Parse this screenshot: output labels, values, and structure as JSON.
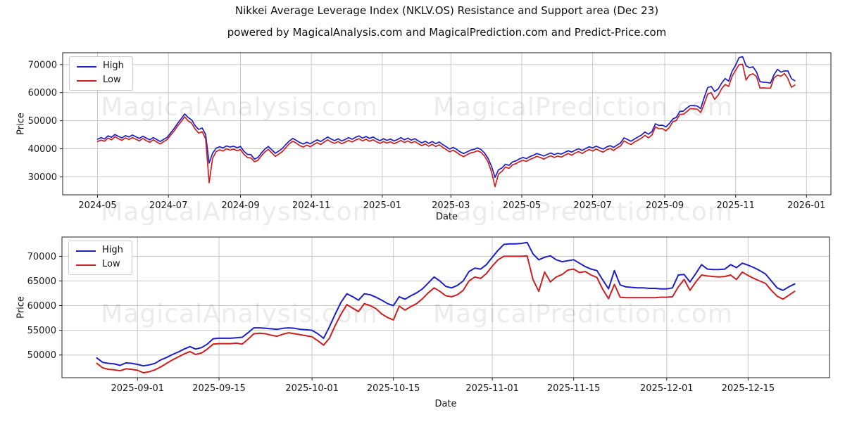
{
  "figure": {
    "title": "Nikkei Average Leverage Index (NKLV.OS) Resistance and Support area (Dec 23)",
    "subtitle": "powered by MagicalAnalysis.com and MagicalPrediction.com and Predict-Price.com"
  },
  "watermarks": {
    "left": "MagicalAnalysis.com",
    "right": "MagicalPrediction.com"
  },
  "chart_data": [
    {
      "type": "line",
      "ylabel": "Price",
      "xlabel": "Date",
      "x_start": "2024-05-01",
      "x_end": "2025-12-22",
      "x_step_days": 3,
      "xlim_days": [
        -30,
        631
      ],
      "ylim": [
        23600,
        74200
      ],
      "grid": true,
      "grid_color": "#c8c8c8",
      "legend_position": "upper-left",
      "yticks": [
        30000,
        40000,
        50000,
        60000,
        70000
      ],
      "xticks": [
        {
          "label": "2024-05",
          "day": 0
        },
        {
          "label": "2024-07",
          "day": 61
        },
        {
          "label": "2024-09",
          "day": 123
        },
        {
          "label": "2024-11",
          "day": 184
        },
        {
          "label": "2025-01",
          "day": 245
        },
        {
          "label": "2025-03",
          "day": 304
        },
        {
          "label": "2025-05",
          "day": 365
        },
        {
          "label": "2025-07",
          "day": 426
        },
        {
          "label": "2025-09",
          "day": 488
        },
        {
          "label": "2025-11",
          "day": 549
        },
        {
          "label": "2026-01",
          "day": 610
        }
      ],
      "series": [
        {
          "name": "High",
          "color": "#1e1ec8",
          "values": [
            43400,
            44000,
            43500,
            44600,
            44100,
            45100,
            44400,
            43900,
            44700,
            44200,
            44900,
            44300,
            43700,
            44500,
            43800,
            43200,
            44000,
            43300,
            42600,
            43400,
            44100,
            45700,
            47300,
            49100,
            50700,
            52400,
            51100,
            50300,
            48200,
            46900,
            47400,
            45100,
            34900,
            38400,
            40200,
            40700,
            40300,
            41000,
            40600,
            40900,
            40400,
            40800,
            39100,
            38000,
            37900,
            36300,
            36900,
            38500,
            39900,
            40800,
            39600,
            38400,
            39200,
            40100,
            41500,
            42800,
            43700,
            43000,
            42200,
            41700,
            42300,
            41800,
            42500,
            43200,
            42600,
            43400,
            44200,
            43500,
            42900,
            43600,
            42800,
            43300,
            44000,
            43400,
            44100,
            44600,
            43800,
            44400,
            43700,
            44200,
            43500,
            42900,
            43600,
            43000,
            43500,
            42800,
            43300,
            44000,
            43200,
            43800,
            43100,
            43600,
            42800,
            42100,
            42700,
            41900,
            42600,
            41800,
            42400,
            41500,
            40700,
            39900,
            40500,
            39800,
            38900,
            38300,
            38900,
            39500,
            39800,
            40300,
            39700,
            38500,
            36600,
            33800,
            29800,
            32500,
            33200,
            34500,
            34100,
            35300,
            35700,
            36400,
            36900,
            36500,
            37200,
            37700,
            38300,
            37900,
            37400,
            38000,
            38500,
            37900,
            38400,
            38100,
            38700,
            39300,
            38800,
            39500,
            40000,
            39400,
            40100,
            40700,
            40300,
            40900,
            40400,
            39900,
            40600,
            41100,
            40500,
            41300,
            42100,
            43900,
            43300,
            42700,
            43500,
            44200,
            44900,
            46000,
            45200,
            46100,
            48900,
            48300,
            48400,
            47800,
            49000,
            50600,
            51200,
            53300,
            53400,
            54500,
            55400,
            55400,
            55200,
            54300,
            58300,
            61800,
            62200,
            60400,
            61300,
            63400,
            65000,
            64100,
            67600,
            69800,
            72500,
            72800,
            69600,
            68900,
            69200,
            67300,
            63900,
            63700,
            63600,
            63400,
            66300,
            68300,
            67300,
            67700,
            67700,
            65000,
            64200
          ]
        },
        {
          "name": "Low",
          "color": "#cd1f1f",
          "values": [
            42600,
            43100,
            42700,
            43800,
            43200,
            44300,
            43600,
            43000,
            43900,
            43300,
            44000,
            43400,
            42800,
            43700,
            42900,
            42300,
            43200,
            42400,
            41700,
            42600,
            43300,
            44900,
            46400,
            48200,
            49700,
            51400,
            49900,
            49100,
            47000,
            45600,
            46100,
            43600,
            27900,
            36600,
            39000,
            39600,
            39200,
            40000,
            39500,
            39900,
            39300,
            39700,
            38000,
            36900,
            36700,
            35400,
            35900,
            37500,
            38900,
            39800,
            38500,
            37300,
            38100,
            39000,
            40400,
            41800,
            42700,
            42000,
            41100,
            40600,
            41300,
            40700,
            41500,
            42200,
            41500,
            42400,
            43200,
            42400,
            41900,
            42600,
            41800,
            42300,
            43000,
            42400,
            43100,
            43600,
            42800,
            43400,
            42700,
            43200,
            42500,
            41900,
            42600,
            42000,
            42500,
            41800,
            42300,
            43000,
            42200,
            42800,
            42100,
            42600,
            41800,
            41100,
            41700,
            40900,
            41600,
            40800,
            41400,
            40500,
            39700,
            38900,
            39500,
            38700,
            37800,
            37200,
            37900,
            38500,
            38800,
            39300,
            38700,
            37400,
            35300,
            31800,
            26500,
            31000,
            32000,
            33500,
            33000,
            34300,
            34700,
            35400,
            35900,
            35500,
            36200,
            36700,
            37300,
            36900,
            36300,
            37000,
            37500,
            36900,
            37400,
            37000,
            37700,
            38300,
            37700,
            38500,
            39000,
            38300,
            39100,
            39700,
            39200,
            39900,
            39300,
            38800,
            39600,
            40100,
            39400,
            40300,
            41000,
            42800,
            42100,
            41500,
            42400,
            43100,
            43800,
            44800,
            43900,
            44900,
            47800,
            47100,
            47200,
            46400,
            47600,
            49600,
            50100,
            52200,
            52300,
            53200,
            54300,
            54200,
            54100,
            52900,
            56000,
            59500,
            60000,
            57600,
            59100,
            61400,
            62900,
            62200,
            65800,
            68000,
            70000,
            70100,
            64500,
            66300,
            66700,
            65700,
            61600,
            61700,
            61600,
            61600,
            65200,
            66200,
            65800,
            66800,
            65000,
            61900,
            62700
          ]
        }
      ]
    },
    {
      "type": "line",
      "ylabel": "Price",
      "xlabel": "Date",
      "x_start": "2025-08-25",
      "x_end": "2025-12-23",
      "x_step_days": 1,
      "xlim_days": [
        -6,
        126
      ],
      "ylim": [
        45400,
        73900
      ],
      "grid": true,
      "grid_color": "#c8c8c8",
      "legend_position": "upper-left",
      "yticks": [
        50000,
        55000,
        60000,
        65000,
        70000
      ],
      "xticks": [
        {
          "label": "2025-09-01",
          "day": 7
        },
        {
          "label": "2025-09-15",
          "day": 21
        },
        {
          "label": "2025-10-01",
          "day": 37
        },
        {
          "label": "2025-10-15",
          "day": 51
        },
        {
          "label": "2025-11-01",
          "day": 68
        },
        {
          "label": "2025-11-15",
          "day": 82
        },
        {
          "label": "2025-12-01",
          "day": 98
        },
        {
          "label": "2025-12-15",
          "day": 112
        }
      ],
      "series": [
        {
          "name": "High",
          "color": "#1e1ec8",
          "values": [
            49400,
            48500,
            48300,
            48200,
            47900,
            48400,
            48300,
            48100,
            47800,
            48000,
            48300,
            49000,
            49500,
            50100,
            50600,
            51200,
            51700,
            51200,
            51500,
            52200,
            53300,
            53400,
            53400,
            53400,
            53500,
            53600,
            54500,
            55500,
            55500,
            55400,
            55300,
            55200,
            55400,
            55500,
            55400,
            55200,
            55100,
            55000,
            54300,
            53400,
            55700,
            58300,
            60700,
            62400,
            61800,
            61100,
            62400,
            62200,
            61700,
            61100,
            60400,
            60000,
            61800,
            61300,
            62000,
            62600,
            63400,
            64600,
            65800,
            65000,
            63900,
            63600,
            64100,
            65000,
            66900,
            67600,
            67400,
            68300,
            69800,
            71200,
            72400,
            72500,
            72500,
            72600,
            72800,
            70500,
            69300,
            69800,
            70100,
            69300,
            68900,
            69100,
            69300,
            68600,
            67900,
            67400,
            67100,
            65200,
            63400,
            67100,
            64200,
            63800,
            63700,
            63600,
            63600,
            63500,
            63500,
            63400,
            63400,
            63600,
            66200,
            66300,
            64800,
            66500,
            68300,
            67400,
            67300,
            67300,
            67400,
            68300,
            67700,
            68600,
            68200,
            67700,
            67100,
            66400,
            65000,
            63600,
            63100,
            63800,
            64400
          ]
        },
        {
          "name": "Low",
          "color": "#cd1f1f",
          "values": [
            48300,
            47400,
            47100,
            47000,
            46800,
            47200,
            47100,
            46900,
            46400,
            46600,
            47000,
            47600,
            48300,
            49000,
            49600,
            50200,
            50700,
            50100,
            50400,
            51200,
            52200,
            52300,
            52300,
            52300,
            52400,
            52200,
            53200,
            54300,
            54400,
            54300,
            54000,
            53800,
            54200,
            54500,
            54300,
            54100,
            53900,
            53700,
            52900,
            52000,
            53400,
            56000,
            58300,
            60200,
            59500,
            58800,
            60400,
            60000,
            59400,
            58300,
            57600,
            57100,
            59900,
            59100,
            59800,
            60400,
            61400,
            62600,
            63600,
            62900,
            62000,
            61800,
            62200,
            63100,
            65000,
            65800,
            65500,
            66500,
            68000,
            69300,
            70000,
            70000,
            70000,
            70000,
            70100,
            65300,
            62900,
            66800,
            64800,
            65800,
            66300,
            67200,
            67400,
            66700,
            66900,
            66200,
            65700,
            63300,
            61400,
            64300,
            61700,
            61600,
            61600,
            61600,
            61600,
            61600,
            61600,
            61700,
            61700,
            61800,
            63800,
            65300,
            63100,
            64800,
            66200,
            66000,
            65900,
            65800,
            65900,
            66200,
            65300,
            66800,
            66100,
            65500,
            65000,
            64500,
            63100,
            61900,
            61300,
            62100,
            62900
          ]
        }
      ]
    }
  ]
}
